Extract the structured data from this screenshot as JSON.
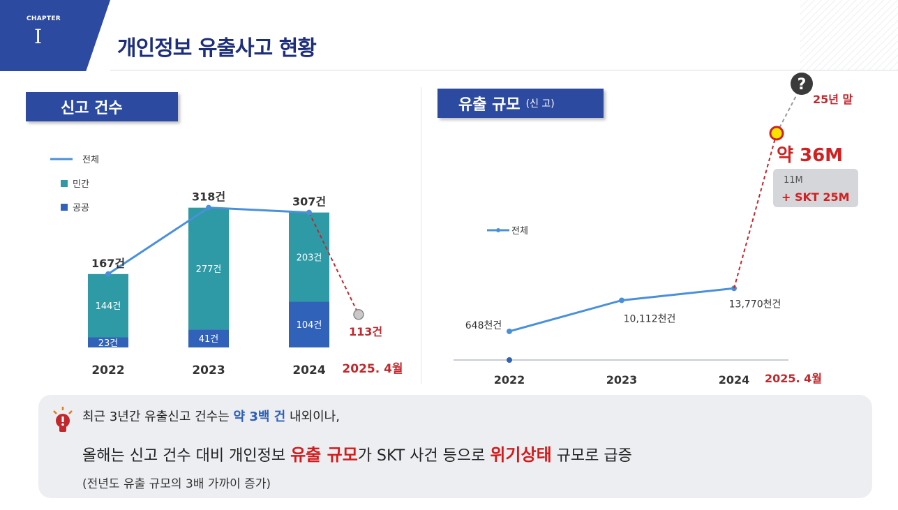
{
  "header": {
    "chapter_label": "CHAPTER",
    "chapter_number": "I",
    "title": "개인정보 유출사고 현황"
  },
  "colors": {
    "navy": "#2c4aa0",
    "teal": "#2e9aa5",
    "blue_bar": "#2f62b8",
    "line": "#4a90d9",
    "red": "#d21c1c"
  },
  "left_section": {
    "tab_label": "신고 건수"
  },
  "right_section": {
    "tab_label": "유출 규모",
    "tab_sub": "(신 고)"
  },
  "chart_data": [
    {
      "type": "bar",
      "stacked": true,
      "title": "신고 건수",
      "categories": [
        "2022",
        "2023",
        "2024"
      ],
      "series": [
        {
          "name": "공공",
          "values": [
            23,
            41,
            104
          ],
          "labels": [
            "23건",
            "41건",
            "104건"
          ]
        },
        {
          "name": "민간",
          "values": [
            144,
            277,
            203
          ],
          "labels": [
            "144건",
            "277건",
            "203건"
          ]
        }
      ],
      "line_series": {
        "name": "전체",
        "values": [
          167,
          318,
          307
        ],
        "labels": [
          "167건",
          "318건",
          "307건"
        ]
      },
      "projection": {
        "category": "2025. 4월",
        "value": 113,
        "label": "113건"
      },
      "legend": [
        "전체",
        "민간",
        "공공"
      ],
      "ylim": [
        0,
        350
      ]
    },
    {
      "type": "line",
      "title": "유출 규모 (신고)",
      "categories": [
        "2022",
        "2023",
        "2024"
      ],
      "series": [
        {
          "name": "전체",
          "values": [
            648,
            10112,
            13770
          ],
          "labels": [
            "648천건",
            "10,112천건",
            "13,770천건"
          ]
        }
      ],
      "projection": {
        "category": "2025. 4월",
        "value_label": "약 36M",
        "breakdown": [
          "11M",
          "+ SKT 25M"
        ],
        "future_label": "25년 말",
        "future_marker": "?"
      },
      "legend": [
        "전체"
      ]
    }
  ],
  "summary": {
    "line1_a": "최근 3년간 유출신고 건수는 ",
    "line1_b": "약 3백 건",
    "line1_c": " 내외이나,",
    "line2_a": "올해는 신고 건수 대비 개인정보 ",
    "line2_b": "유출 규모",
    "line2_c": "가  SKT 사건 등으로 ",
    "line2_d": "위기상태",
    "line2_e": " 규모로 급증",
    "line3": "(전년도 유출 규모의 3배 가까이 증가)"
  }
}
